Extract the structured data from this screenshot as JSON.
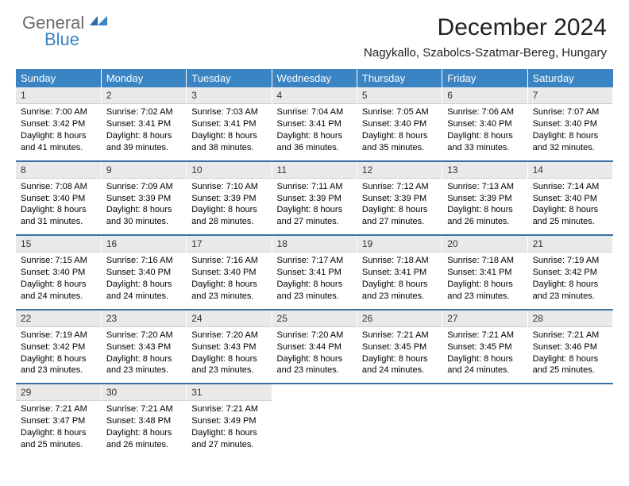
{
  "brand": {
    "general": "General",
    "blue": "Blue"
  },
  "title": "December 2024",
  "location": "Nagykallo, Szabolcs-Szatmar-Bereg, Hungary",
  "colors": {
    "header_bg": "#3a84c4",
    "header_text": "#ffffff",
    "daynum_bg": "#e9e9e9",
    "row_divider": "#3a6fa0",
    "logo_gray": "#6a6a6a",
    "logo_blue": "#3a84c4",
    "page_bg": "#ffffff",
    "text": "#000000"
  },
  "layout": {
    "type": "table",
    "columns": 7,
    "rows": 5,
    "cell_font_size_pt": 8,
    "header_font_size_pt": 10,
    "title_font_size_pt": 22
  },
  "weekdays": [
    "Sunday",
    "Monday",
    "Tuesday",
    "Wednesday",
    "Thursday",
    "Friday",
    "Saturday"
  ],
  "days": [
    {
      "n": "1",
      "sr": "7:00 AM",
      "ss": "3:42 PM",
      "dl": "8 hours and 41 minutes."
    },
    {
      "n": "2",
      "sr": "7:02 AM",
      "ss": "3:41 PM",
      "dl": "8 hours and 39 minutes."
    },
    {
      "n": "3",
      "sr": "7:03 AM",
      "ss": "3:41 PM",
      "dl": "8 hours and 38 minutes."
    },
    {
      "n": "4",
      "sr": "7:04 AM",
      "ss": "3:41 PM",
      "dl": "8 hours and 36 minutes."
    },
    {
      "n": "5",
      "sr": "7:05 AM",
      "ss": "3:40 PM",
      "dl": "8 hours and 35 minutes."
    },
    {
      "n": "6",
      "sr": "7:06 AM",
      "ss": "3:40 PM",
      "dl": "8 hours and 33 minutes."
    },
    {
      "n": "7",
      "sr": "7:07 AM",
      "ss": "3:40 PM",
      "dl": "8 hours and 32 minutes."
    },
    {
      "n": "8",
      "sr": "7:08 AM",
      "ss": "3:40 PM",
      "dl": "8 hours and 31 minutes."
    },
    {
      "n": "9",
      "sr": "7:09 AM",
      "ss": "3:39 PM",
      "dl": "8 hours and 30 minutes."
    },
    {
      "n": "10",
      "sr": "7:10 AM",
      "ss": "3:39 PM",
      "dl": "8 hours and 28 minutes."
    },
    {
      "n": "11",
      "sr": "7:11 AM",
      "ss": "3:39 PM",
      "dl": "8 hours and 27 minutes."
    },
    {
      "n": "12",
      "sr": "7:12 AM",
      "ss": "3:39 PM",
      "dl": "8 hours and 27 minutes."
    },
    {
      "n": "13",
      "sr": "7:13 AM",
      "ss": "3:39 PM",
      "dl": "8 hours and 26 minutes."
    },
    {
      "n": "14",
      "sr": "7:14 AM",
      "ss": "3:40 PM",
      "dl": "8 hours and 25 minutes."
    },
    {
      "n": "15",
      "sr": "7:15 AM",
      "ss": "3:40 PM",
      "dl": "8 hours and 24 minutes."
    },
    {
      "n": "16",
      "sr": "7:16 AM",
      "ss": "3:40 PM",
      "dl": "8 hours and 24 minutes."
    },
    {
      "n": "17",
      "sr": "7:16 AM",
      "ss": "3:40 PM",
      "dl": "8 hours and 23 minutes."
    },
    {
      "n": "18",
      "sr": "7:17 AM",
      "ss": "3:41 PM",
      "dl": "8 hours and 23 minutes."
    },
    {
      "n": "19",
      "sr": "7:18 AM",
      "ss": "3:41 PM",
      "dl": "8 hours and 23 minutes."
    },
    {
      "n": "20",
      "sr": "7:18 AM",
      "ss": "3:41 PM",
      "dl": "8 hours and 23 minutes."
    },
    {
      "n": "21",
      "sr": "7:19 AM",
      "ss": "3:42 PM",
      "dl": "8 hours and 23 minutes."
    },
    {
      "n": "22",
      "sr": "7:19 AM",
      "ss": "3:42 PM",
      "dl": "8 hours and 23 minutes."
    },
    {
      "n": "23",
      "sr": "7:20 AM",
      "ss": "3:43 PM",
      "dl": "8 hours and 23 minutes."
    },
    {
      "n": "24",
      "sr": "7:20 AM",
      "ss": "3:43 PM",
      "dl": "8 hours and 23 minutes."
    },
    {
      "n": "25",
      "sr": "7:20 AM",
      "ss": "3:44 PM",
      "dl": "8 hours and 23 minutes."
    },
    {
      "n": "26",
      "sr": "7:21 AM",
      "ss": "3:45 PM",
      "dl": "8 hours and 24 minutes."
    },
    {
      "n": "27",
      "sr": "7:21 AM",
      "ss": "3:45 PM",
      "dl": "8 hours and 24 minutes."
    },
    {
      "n": "28",
      "sr": "7:21 AM",
      "ss": "3:46 PM",
      "dl": "8 hours and 25 minutes."
    },
    {
      "n": "29",
      "sr": "7:21 AM",
      "ss": "3:47 PM",
      "dl": "8 hours and 25 minutes."
    },
    {
      "n": "30",
      "sr": "7:21 AM",
      "ss": "3:48 PM",
      "dl": "8 hours and 26 minutes."
    },
    {
      "n": "31",
      "sr": "7:21 AM",
      "ss": "3:49 PM",
      "dl": "8 hours and 27 minutes."
    }
  ],
  "labels": {
    "sunrise": "Sunrise:",
    "sunset": "Sunset:",
    "daylight": "Daylight:"
  }
}
